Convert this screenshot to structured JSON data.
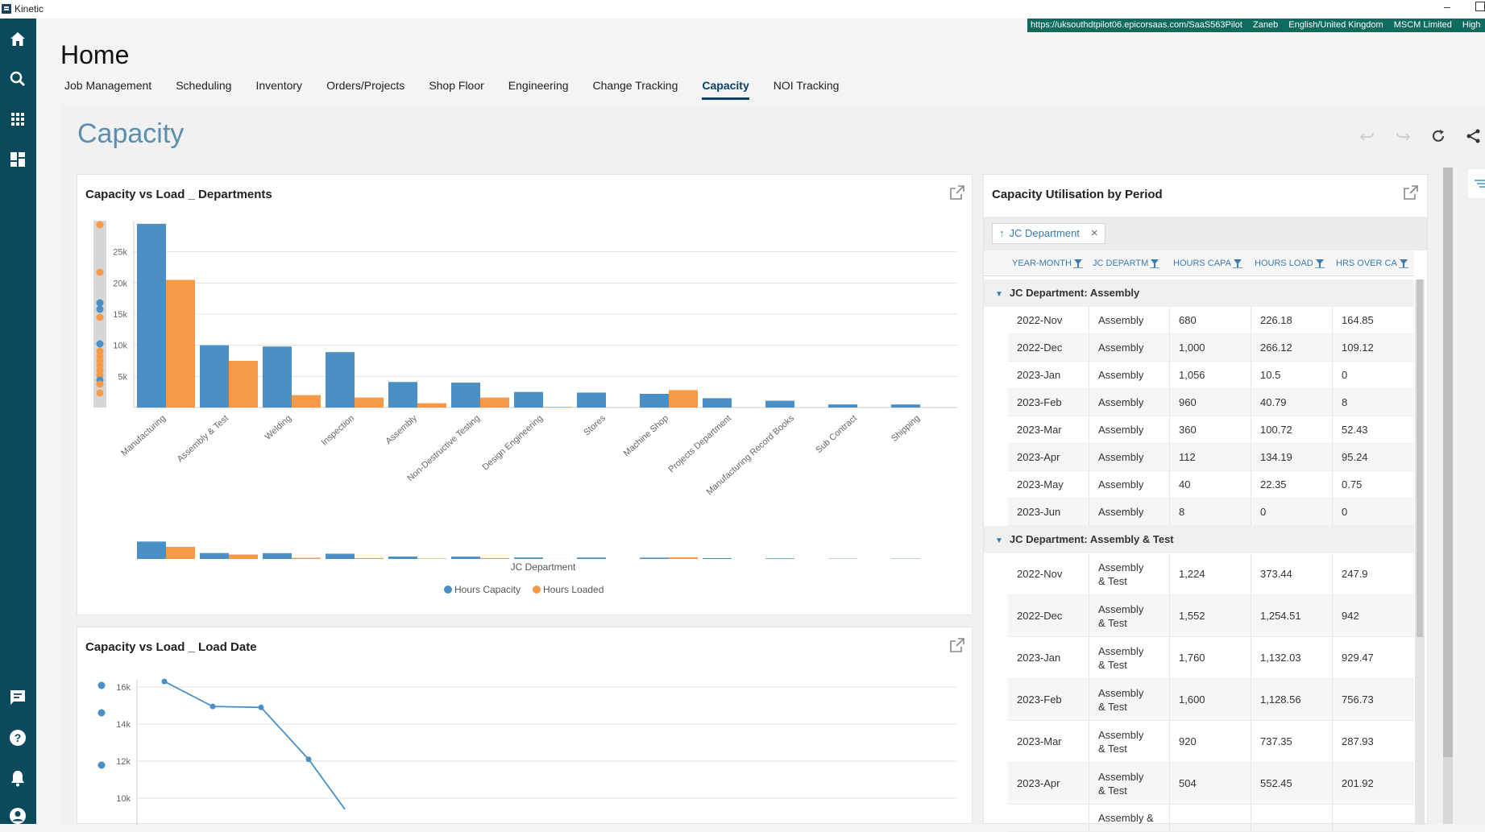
{
  "app": {
    "title": "Kinetic",
    "window_min": "–"
  },
  "infobar": [
    "https://uksouthdtpilot06.epicorsaas.com/SaaS563Pilot",
    "Zaneb",
    "English/United Kingdom",
    "MSCM Limited",
    "High"
  ],
  "sidebar": {
    "icons": [
      "home-icon",
      "search-icon",
      "apps-grid-icon",
      "dashboard-icon",
      "chat-icon",
      "help-icon",
      "bell-icon",
      "user-icon"
    ]
  },
  "page": {
    "title": "Home",
    "tabs": [
      "Job Management",
      "Scheduling",
      "Inventory",
      "Orders/Projects",
      "Shop Floor",
      "Engineering",
      "Change Tracking",
      "Capacity",
      "NOI Tracking"
    ],
    "active_tab": "Capacity",
    "section_title": "Capacity"
  },
  "toolbar": {
    "icons": [
      "undo-icon",
      "redo-icon",
      "refresh-icon",
      "share-icon"
    ]
  },
  "colors": {
    "capacity": "#4a90c4",
    "loaded": "#f79a45",
    "accent": "#0b3f6a",
    "sidebar": "#0a4a5c"
  },
  "card_dept": {
    "title": "Capacity vs Load _ Departments",
    "xlabel": "JC Department"
  },
  "card_load": {
    "title": "Capacity vs Load _ Load Date"
  },
  "card_util": {
    "title": "Capacity Utilisation by Period",
    "group_chip": "JC Department",
    "columns": [
      "YEAR-MONTH",
      "JC DEPARTM",
      "HOURS CAPA",
      "HOURS LOAD",
      "HRS OVER CA"
    ],
    "groups": [
      {
        "label": "JC Department: Assembly",
        "rows": [
          [
            "2022-Nov",
            "Assembly",
            "680",
            "226.18",
            "164.85"
          ],
          [
            "2022-Dec",
            "Assembly",
            "1,000",
            "266.12",
            "109.12"
          ],
          [
            "2023-Jan",
            "Assembly",
            "1,056",
            "10.5",
            "0"
          ],
          [
            "2023-Feb",
            "Assembly",
            "960",
            "40.79",
            "8"
          ],
          [
            "2023-Mar",
            "Assembly",
            "360",
            "100.72",
            "52.43"
          ],
          [
            "2023-Apr",
            "Assembly",
            "112",
            "134.19",
            "95.24"
          ],
          [
            "2023-May",
            "Assembly",
            "40",
            "22.35",
            "0.75"
          ],
          [
            "2023-Jun",
            "Assembly",
            "8",
            "0",
            "0"
          ]
        ]
      },
      {
        "label": "JC Department: Assembly & Test",
        "rows": [
          [
            "2022-Nov",
            "Assembly & Test",
            "1,224",
            "373.44",
            "247.9"
          ],
          [
            "2022-Dec",
            "Assembly & Test",
            "1,552",
            "1,254.51",
            "942"
          ],
          [
            "2023-Jan",
            "Assembly & Test",
            "1,760",
            "1,132.03",
            "929.47"
          ],
          [
            "2023-Feb",
            "Assembly & Test",
            "1,600",
            "1,128.56",
            "756.73"
          ],
          [
            "2023-Mar",
            "Assembly & Test",
            "920",
            "737.35",
            "287.93"
          ],
          [
            "2023-Apr",
            "Assembly & Test",
            "504",
            "552.45",
            "201.92"
          ],
          [
            "",
            "Assembly &",
            "",
            "",
            ""
          ]
        ]
      }
    ]
  },
  "chart_data": [
    {
      "type": "bar",
      "title": "Capacity vs Load _ Departments",
      "xlabel": "JC Department",
      "ylabel": "",
      "ylim": [
        0,
        30000
      ],
      "yticks": [
        "5k",
        "10k",
        "15k",
        "20k",
        "25k"
      ],
      "categories": [
        "Manufacturing",
        "Assembly & Test",
        "Welding",
        "Inspection",
        "Assembly",
        "Non-Destructive Testing",
        "Design Engineering",
        "Stores",
        "Machine Shop",
        "Projects Department",
        "Manufacturing Record Books",
        "Sub Contract",
        "Shipping"
      ],
      "series": [
        {
          "name": "Hours Capacity",
          "values": [
            29500,
            10000,
            9800,
            8900,
            4100,
            4000,
            2500,
            2400,
            2200,
            1500,
            1100,
            500,
            500
          ]
        },
        {
          "name": "Hours Loaded",
          "values": [
            20500,
            7500,
            2000,
            1600,
            700,
            1600,
            100,
            0,
            2800,
            0,
            0,
            0,
            0
          ]
        }
      ],
      "legend": "bottom",
      "grid": true
    },
    {
      "type": "line",
      "title": "Capacity vs Load _ Load Date",
      "yticks": [
        "10k",
        "12k",
        "14k",
        "16k"
      ],
      "ylim": [
        9500,
        16500
      ],
      "series": [
        {
          "values": [
            16300,
            14950,
            14900,
            12100,
            9400
          ]
        }
      ],
      "grid": true
    }
  ]
}
